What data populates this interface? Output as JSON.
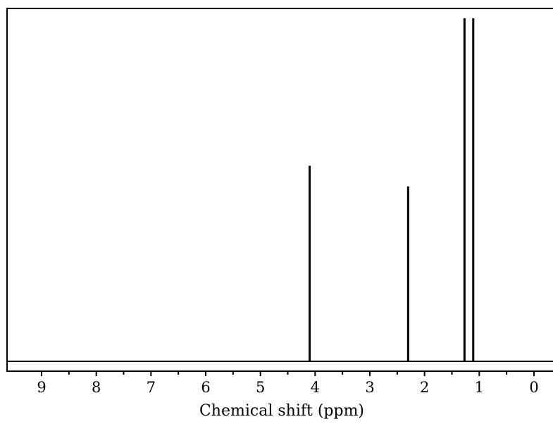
{
  "chart_data": {
    "type": "line",
    "title": "",
    "xlabel": "Chemical shift (ppm)",
    "ylabel": "",
    "x_reversed": true,
    "xlim": [
      9.6,
      -0.3
    ],
    "ylim": [
      0,
      100
    ],
    "grid": false,
    "x_ticks": [
      9,
      8,
      7,
      6,
      5,
      4,
      3,
      2,
      1,
      0
    ],
    "x_tick_labels": [
      "9",
      "8",
      "7",
      "6",
      "5",
      "4",
      "3",
      "2",
      "1",
      "0"
    ],
    "x_minor_ticks": [
      8.5,
      7.5,
      6.5,
      5.5,
      4.5,
      3.5,
      2.5,
      1.5,
      0.5
    ],
    "peaks": [
      {
        "shift": 4.1,
        "intensity": 57
      },
      {
        "shift": 2.3,
        "intensity": 51
      },
      {
        "shift": 1.27,
        "intensity": 100
      },
      {
        "shift": 1.11,
        "intensity": 100
      }
    ]
  }
}
